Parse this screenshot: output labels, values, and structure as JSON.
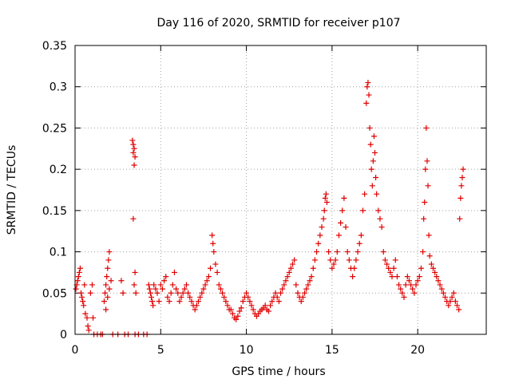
{
  "chart_data": {
    "type": "scatter",
    "title": "Day 116 of 2020, SRMTID for receiver p107",
    "xlabel": "GPS time / hours",
    "ylabel": "SRMTID / TECUs",
    "xlim": [
      0,
      24
    ],
    "ylim": [
      0,
      0.35
    ],
    "xticks": [
      0,
      5,
      10,
      15,
      20
    ],
    "xtick_labels": [
      "0",
      "5",
      "10",
      "15",
      "20"
    ],
    "yticks": [
      0,
      0.05,
      0.1,
      0.15,
      0.2,
      0.25,
      0.3,
      0.35
    ],
    "ytick_labels": [
      "0",
      "0.05",
      "0.1",
      "0.15",
      "0.2",
      "0.25",
      "0.3",
      "0.35"
    ],
    "grid": true,
    "marker": "+",
    "color": "#e00000",
    "series": [
      {
        "name": "SRMTID",
        "points": [
          [
            0.05,
            0.055
          ],
          [
            0.1,
            0.06
          ],
          [
            0.15,
            0.065
          ],
          [
            0.2,
            0.07
          ],
          [
            0.25,
            0.075
          ],
          [
            0.3,
            0.08
          ],
          [
            0.35,
            0.05
          ],
          [
            0.4,
            0.045
          ],
          [
            0.45,
            0.04
          ],
          [
            0.5,
            0.035
          ],
          [
            0.55,
            0.06
          ],
          [
            0.6,
            0.025
          ],
          [
            0.7,
            0.02
          ],
          [
            0.75,
            0.01
          ],
          [
            0.8,
            0.005
          ],
          [
            0.9,
            0.05
          ],
          [
            1.0,
            0.06
          ],
          [
            1.05,
            0.02
          ],
          [
            1.1,
            0.0
          ],
          [
            1.3,
            0.0
          ],
          [
            1.5,
            0.0
          ],
          [
            1.6,
            0.0
          ],
          [
            1.7,
            0.04
          ],
          [
            1.75,
            0.05
          ],
          [
            1.8,
            0.06
          ],
          [
            1.85,
            0.07
          ],
          [
            1.9,
            0.08
          ],
          [
            1.95,
            0.09
          ],
          [
            2.0,
            0.1
          ],
          [
            1.8,
            0.03
          ],
          [
            1.9,
            0.045
          ],
          [
            2.0,
            0.055
          ],
          [
            2.1,
            0.065
          ],
          [
            2.2,
            0.0
          ],
          [
            2.5,
            0.0
          ],
          [
            2.7,
            0.065
          ],
          [
            2.8,
            0.05
          ],
          [
            2.9,
            0.0
          ],
          [
            3.1,
            0.0
          ],
          [
            3.35,
            0.235
          ],
          [
            3.4,
            0.23
          ],
          [
            3.45,
            0.225
          ],
          [
            3.4,
            0.22
          ],
          [
            3.5,
            0.215
          ],
          [
            3.45,
            0.205
          ],
          [
            3.4,
            0.14
          ],
          [
            3.5,
            0.075
          ],
          [
            3.55,
            0.05
          ],
          [
            3.45,
            0.06
          ],
          [
            3.5,
            0.0
          ],
          [
            3.7,
            0.0
          ],
          [
            4.0,
            0.0
          ],
          [
            4.2,
            0.0
          ],
          [
            4.3,
            0.06
          ],
          [
            4.35,
            0.055
          ],
          [
            4.4,
            0.05
          ],
          [
            4.45,
            0.045
          ],
          [
            4.5,
            0.04
          ],
          [
            4.55,
            0.035
          ],
          [
            4.6,
            0.06
          ],
          [
            4.7,
            0.055
          ],
          [
            4.8,
            0.05
          ],
          [
            4.9,
            0.04
          ],
          [
            5.0,
            0.06
          ],
          [
            5.1,
            0.055
          ],
          [
            5.2,
            0.065
          ],
          [
            5.3,
            0.07
          ],
          [
            5.4,
            0.045
          ],
          [
            5.5,
            0.04
          ],
          [
            5.6,
            0.05
          ],
          [
            5.7,
            0.06
          ],
          [
            5.8,
            0.075
          ],
          [
            5.9,
            0.055
          ],
          [
            6.0,
            0.05
          ],
          [
            6.1,
            0.04
          ],
          [
            6.2,
            0.045
          ],
          [
            6.3,
            0.05
          ],
          [
            6.4,
            0.055
          ],
          [
            6.5,
            0.06
          ],
          [
            6.6,
            0.05
          ],
          [
            6.7,
            0.045
          ],
          [
            6.8,
            0.04
          ],
          [
            6.9,
            0.035
          ],
          [
            7.0,
            0.03
          ],
          [
            7.1,
            0.035
          ],
          [
            7.2,
            0.04
          ],
          [
            7.3,
            0.045
          ],
          [
            7.4,
            0.05
          ],
          [
            7.5,
            0.055
          ],
          [
            7.6,
            0.06
          ],
          [
            7.7,
            0.065
          ],
          [
            7.8,
            0.07
          ],
          [
            7.9,
            0.08
          ],
          [
            8.0,
            0.12
          ],
          [
            8.05,
            0.11
          ],
          [
            8.1,
            0.1
          ],
          [
            8.2,
            0.085
          ],
          [
            8.3,
            0.075
          ],
          [
            8.4,
            0.06
          ],
          [
            8.5,
            0.055
          ],
          [
            8.6,
            0.05
          ],
          [
            8.7,
            0.045
          ],
          [
            8.8,
            0.04
          ],
          [
            8.9,
            0.035
          ],
          [
            9.0,
            0.03
          ],
          [
            9.1,
            0.03
          ],
          [
            9.2,
            0.025
          ],
          [
            9.3,
            0.02
          ],
          [
            9.4,
            0.018
          ],
          [
            9.5,
            0.022
          ],
          [
            9.6,
            0.028
          ],
          [
            9.7,
            0.032
          ],
          [
            9.8,
            0.04
          ],
          [
            9.9,
            0.045
          ],
          [
            10.0,
            0.05
          ],
          [
            10.1,
            0.045
          ],
          [
            10.2,
            0.04
          ],
          [
            10.3,
            0.035
          ],
          [
            10.4,
            0.03
          ],
          [
            10.5,
            0.025
          ],
          [
            10.6,
            0.022
          ],
          [
            10.7,
            0.025
          ],
          [
            10.8,
            0.028
          ],
          [
            10.9,
            0.03
          ],
          [
            11.0,
            0.032
          ],
          [
            11.1,
            0.035
          ],
          [
            11.2,
            0.03
          ],
          [
            11.3,
            0.028
          ],
          [
            11.4,
            0.035
          ],
          [
            11.5,
            0.04
          ],
          [
            11.6,
            0.045
          ],
          [
            11.7,
            0.05
          ],
          [
            11.8,
            0.045
          ],
          [
            11.9,
            0.04
          ],
          [
            12.0,
            0.05
          ],
          [
            12.1,
            0.055
          ],
          [
            12.2,
            0.06
          ],
          [
            12.3,
            0.065
          ],
          [
            12.4,
            0.07
          ],
          [
            12.5,
            0.075
          ],
          [
            12.6,
            0.08
          ],
          [
            12.7,
            0.085
          ],
          [
            12.8,
            0.09
          ],
          [
            12.9,
            0.06
          ],
          [
            13.0,
            0.05
          ],
          [
            13.1,
            0.045
          ],
          [
            13.2,
            0.04
          ],
          [
            13.3,
            0.045
          ],
          [
            13.4,
            0.05
          ],
          [
            13.5,
            0.055
          ],
          [
            13.6,
            0.06
          ],
          [
            13.7,
            0.065
          ],
          [
            13.8,
            0.07
          ],
          [
            13.9,
            0.08
          ],
          [
            14.0,
            0.09
          ],
          [
            14.1,
            0.1
          ],
          [
            14.2,
            0.11
          ],
          [
            14.3,
            0.12
          ],
          [
            14.4,
            0.13
          ],
          [
            14.5,
            0.14
          ],
          [
            14.55,
            0.15
          ],
          [
            14.6,
            0.165
          ],
          [
            14.65,
            0.17
          ],
          [
            14.7,
            0.16
          ],
          [
            14.8,
            0.1
          ],
          [
            14.9,
            0.09
          ],
          [
            15.0,
            0.08
          ],
          [
            15.1,
            0.085
          ],
          [
            15.2,
            0.09
          ],
          [
            15.3,
            0.1
          ],
          [
            15.4,
            0.12
          ],
          [
            15.5,
            0.135
          ],
          [
            15.6,
            0.15
          ],
          [
            15.7,
            0.165
          ],
          [
            15.8,
            0.13
          ],
          [
            15.9,
            0.1
          ],
          [
            16.0,
            0.09
          ],
          [
            16.1,
            0.08
          ],
          [
            16.2,
            0.07
          ],
          [
            16.3,
            0.08
          ],
          [
            16.4,
            0.09
          ],
          [
            16.5,
            0.1
          ],
          [
            16.6,
            0.11
          ],
          [
            16.7,
            0.12
          ],
          [
            16.8,
            0.15
          ],
          [
            16.9,
            0.17
          ],
          [
            17.0,
            0.28
          ],
          [
            17.05,
            0.3
          ],
          [
            17.1,
            0.305
          ],
          [
            17.15,
            0.29
          ],
          [
            17.2,
            0.25
          ],
          [
            17.25,
            0.23
          ],
          [
            17.3,
            0.2
          ],
          [
            17.35,
            0.18
          ],
          [
            17.4,
            0.21
          ],
          [
            17.45,
            0.24
          ],
          [
            17.5,
            0.22
          ],
          [
            17.55,
            0.19
          ],
          [
            17.6,
            0.17
          ],
          [
            17.7,
            0.15
          ],
          [
            17.8,
            0.14
          ],
          [
            17.9,
            0.13
          ],
          [
            18.0,
            0.1
          ],
          [
            18.1,
            0.09
          ],
          [
            18.2,
            0.085
          ],
          [
            18.3,
            0.08
          ],
          [
            18.4,
            0.075
          ],
          [
            18.5,
            0.07
          ],
          [
            18.6,
            0.08
          ],
          [
            18.7,
            0.09
          ],
          [
            18.8,
            0.07
          ],
          [
            18.9,
            0.06
          ],
          [
            19.0,
            0.055
          ],
          [
            19.1,
            0.05
          ],
          [
            19.2,
            0.045
          ],
          [
            19.3,
            0.06
          ],
          [
            19.4,
            0.07
          ],
          [
            19.5,
            0.065
          ],
          [
            19.6,
            0.06
          ],
          [
            19.7,
            0.055
          ],
          [
            19.8,
            0.05
          ],
          [
            19.9,
            0.06
          ],
          [
            20.0,
            0.065
          ],
          [
            20.1,
            0.07
          ],
          [
            20.2,
            0.08
          ],
          [
            20.3,
            0.1
          ],
          [
            20.35,
            0.14
          ],
          [
            20.4,
            0.16
          ],
          [
            20.45,
            0.2
          ],
          [
            20.5,
            0.25
          ],
          [
            20.55,
            0.21
          ],
          [
            20.6,
            0.18
          ],
          [
            20.65,
            0.12
          ],
          [
            20.7,
            0.095
          ],
          [
            20.8,
            0.085
          ],
          [
            20.9,
            0.08
          ],
          [
            21.0,
            0.075
          ],
          [
            21.1,
            0.07
          ],
          [
            21.2,
            0.065
          ],
          [
            21.3,
            0.06
          ],
          [
            21.4,
            0.055
          ],
          [
            21.5,
            0.05
          ],
          [
            21.6,
            0.045
          ],
          [
            21.7,
            0.04
          ],
          [
            21.8,
            0.035
          ],
          [
            21.9,
            0.04
          ],
          [
            22.0,
            0.045
          ],
          [
            22.1,
            0.05
          ],
          [
            22.2,
            0.04
          ],
          [
            22.3,
            0.035
          ],
          [
            22.4,
            0.03
          ],
          [
            22.45,
            0.14
          ],
          [
            22.5,
            0.165
          ],
          [
            22.55,
            0.18
          ],
          [
            22.6,
            0.19
          ],
          [
            22.65,
            0.2
          ]
        ]
      }
    ]
  }
}
